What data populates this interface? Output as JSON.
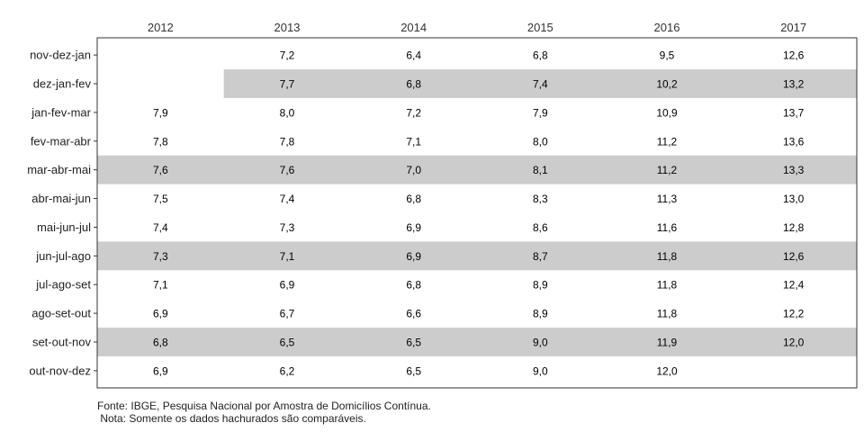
{
  "chart_data": {
    "type": "table",
    "columns": [
      "2012",
      "2013",
      "2014",
      "2015",
      "2016",
      "2017"
    ],
    "rows": [
      {
        "label": "nov-dez-jan",
        "values": [
          "",
          "7,2",
          "6,4",
          "6,8",
          "9,5",
          "12,6"
        ],
        "shaded": false
      },
      {
        "label": "dez-jan-fev",
        "values": [
          "",
          "7,7",
          "6,8",
          "7,4",
          "10,2",
          "13,2"
        ],
        "shaded": true
      },
      {
        "label": "jan-fev-mar",
        "values": [
          "7,9",
          "8,0",
          "7,2",
          "7,9",
          "10,9",
          "13,7"
        ],
        "shaded": false
      },
      {
        "label": "fev-mar-abr",
        "values": [
          "7,8",
          "7,8",
          "7,1",
          "8,0",
          "11,2",
          "13,6"
        ],
        "shaded": false
      },
      {
        "label": "mar-abr-mai",
        "values": [
          "7,6",
          "7,6",
          "7,0",
          "8,1",
          "11,2",
          "13,3"
        ],
        "shaded": true
      },
      {
        "label": "abr-mai-jun",
        "values": [
          "7,5",
          "7,4",
          "6,8",
          "8,3",
          "11,3",
          "13,0"
        ],
        "shaded": false
      },
      {
        "label": "mai-jun-jul",
        "values": [
          "7,4",
          "7,3",
          "6,9",
          "8,6",
          "11,6",
          "12,8"
        ],
        "shaded": false
      },
      {
        "label": "jun-jul-ago",
        "values": [
          "7,3",
          "7,1",
          "6,9",
          "8,7",
          "11,8",
          "12,6"
        ],
        "shaded": true
      },
      {
        "label": "jul-ago-set",
        "values": [
          "7,1",
          "6,9",
          "6,8",
          "8,9",
          "11,8",
          "12,4"
        ],
        "shaded": false
      },
      {
        "label": "ago-set-out",
        "values": [
          "6,9",
          "6,7",
          "6,6",
          "8,9",
          "11,8",
          "12,2"
        ],
        "shaded": false
      },
      {
        "label": "set-out-nov",
        "values": [
          "6,8",
          "6,5",
          "6,5",
          "9,0",
          "11,9",
          "12,0"
        ],
        "shaded": true
      },
      {
        "label": "out-nov-dez",
        "values": [
          "6,9",
          "6,2",
          "6,5",
          "9,0",
          "12,0",
          ""
        ],
        "shaded": false
      }
    ],
    "shade_color": "#cccccc",
    "border_color": "#333333"
  },
  "footnote": {
    "source": "Fonte: IBGE, Pesquisa Nacional por Amostra de Domicílios Contínua.",
    "note": " Nota: Somente os dados hachurados são comparáveis."
  }
}
